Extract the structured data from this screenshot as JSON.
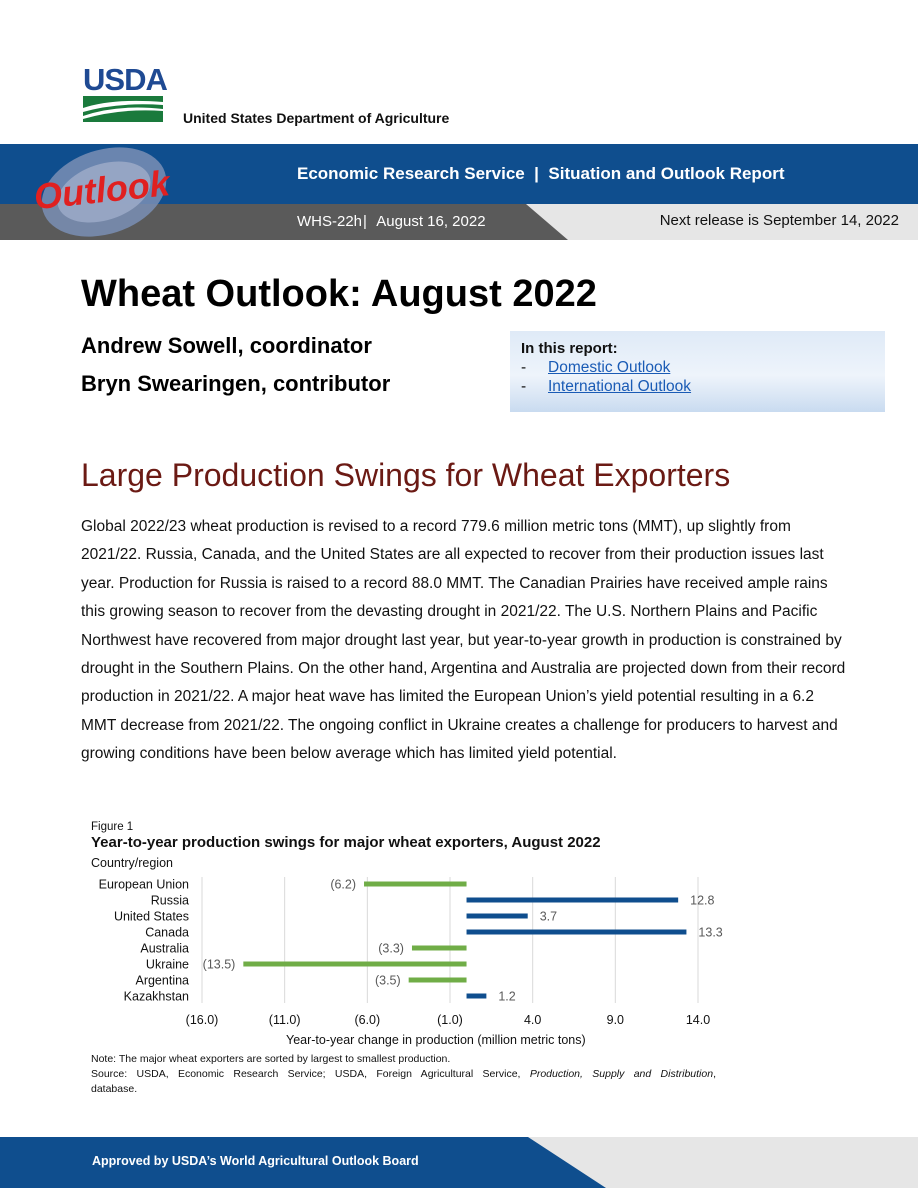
{
  "header": {
    "logo_text": "USDA",
    "department": "United States Department of Agriculture",
    "banner_title": "Economic Research Service  |  Situation and Outlook Report",
    "report_code": "WHS-22h",
    "date": "August 16, 2022",
    "next_release": "Next release is September 14, 2022",
    "badge_text": "Outlook"
  },
  "title": "Wheat Outlook: August 2022",
  "authors": [
    "Andrew Sowell, coordinator",
    "Bryn Swearingen, contributor"
  ],
  "in_this_report": {
    "heading": "In this report:",
    "items": [
      {
        "dash": "-",
        "label": "Domestic Outlook"
      },
      {
        "dash": "-",
        "label": "International Outlook"
      }
    ]
  },
  "section_title": "Large Production Swings for Wheat Exporters",
  "body_paragraph": "Global 2022/23 wheat production is revised to a record 779.6 million metric tons (MMT), up slightly from 2021/22. Russia, Canada, and the United States are all expected to recover from their production issues last year. Production for Russia is raised to a record 88.0 MMT. The Canadian Prairies have received ample rains this growing season to recover from the devasting drought in 2021/22. The U.S. Northern Plains and Pacific Northwest have recovered from major drought last year, but year-to-year growth in production is constrained by drought in the Southern Plains. On the other hand, Argentina and Australia are projected down from their record production in 2021/22. A major heat wave has limited the European Union’s yield potential resulting in a 6.2 MMT decrease from 2021/22. The ongoing conflict in Ukraine creates a challenge for producers to harvest and growing conditions have been below average which has limited yield potential.",
  "figure": {
    "label": "Figure 1",
    "note": "Note: The major wheat exporters are sorted by largest to smallest production.",
    "source_prefix": "Source: USDA, Economic Research Service; USDA, Foreign Agricultural Service,",
    "source_italic": "Production, Supply and Distribution",
    "source_suffix": "database."
  },
  "chart_data": {
    "type": "bar",
    "orientation": "horizontal",
    "title": "Year-to-year production swings for major wheat exporters, August 2022",
    "ylabel": "Country/region",
    "xlabel": "Year-to-year change in production (million metric tons)",
    "categories": [
      "European Union",
      "Russia",
      "United States",
      "Canada",
      "Australia",
      "Ukraine",
      "Argentina",
      "Kazakhstan"
    ],
    "values": [
      -6.2,
      12.8,
      3.7,
      13.3,
      -3.3,
      -13.5,
      -3.5,
      1.2
    ],
    "data_labels": [
      "(6.2)",
      "12.8",
      "3.7",
      "13.3",
      "(3.3)",
      "(13.5)",
      "(3.5)",
      "1.2"
    ],
    "xlim": [
      -16.0,
      14.0
    ],
    "xticks": [
      -16.0,
      -11.0,
      -6.0,
      -1.0,
      4.0,
      9.0,
      14.0
    ],
    "xtick_labels": [
      "(16.0)",
      "(11.0)",
      "(6.0)",
      "(1.0)",
      "4.0",
      "9.0",
      "14.0"
    ],
    "colors": {
      "negative": "#70ad47",
      "positive": "#0f4e8e",
      "grid": "#d9d9d9",
      "label": "#595959"
    },
    "grid": true,
    "legend": "none"
  },
  "footer": {
    "text": "Approved by USDA’s World Agricultural Outlook Board"
  }
}
